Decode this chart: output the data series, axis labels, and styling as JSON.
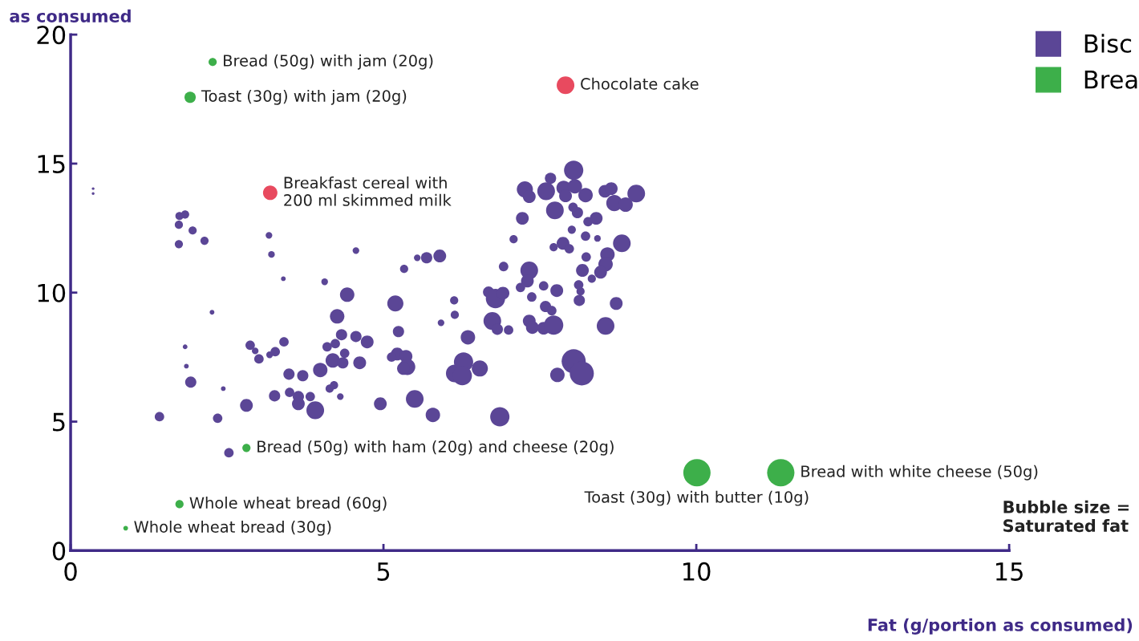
{
  "chart_data": {
    "type": "bubble",
    "ylabel": "as consumed",
    "xlabel": "Fat (g/portion as consumed)",
    "xlim": [
      0,
      15
    ],
    "xticks": [
      0,
      5,
      10,
      15
    ],
    "ylim": [
      0,
      20
    ],
    "yticks": [
      0,
      5,
      10,
      15,
      20
    ],
    "grid": false,
    "legend": "top right",
    "series": [
      {
        "name": "Bisc",
        "color": "#5b4696",
        "x": [
          0.36,
          0.36,
          1.74,
          1.83,
          1.73,
          1.95,
          1.73,
          2.14,
          3.17,
          3.21,
          4.56,
          3.4,
          4.06,
          4.42,
          4.26,
          2.26,
          1.83,
          1.85,
          1.92,
          1.42,
          2.35,
          2.44,
          2.81,
          2.53,
          2.87,
          2.95,
          3.01,
          3.18,
          3.27,
          3.41,
          3.49,
          3.71,
          3.26,
          3.5,
          3.64,
          3.83,
          3.64,
          3.91,
          3.99,
          4.1,
          4.23,
          4.33,
          4.56,
          4.74,
          4.19,
          4.35,
          4.38,
          4.62,
          4.14,
          4.31,
          4.21,
          4.95,
          5.19,
          5.24,
          5.22,
          5.13,
          5.36,
          5.38,
          5.32,
          5.5,
          5.79,
          5.33,
          5.54,
          5.69,
          5.9,
          5.92,
          6.13,
          6.14,
          6.35,
          6.14,
          6.28,
          6.26,
          6.54,
          6.86,
          6.68,
          6.79,
          6.91,
          6.74,
          6.82,
          7.0,
          6.92,
          7.19,
          7.08,
          7.22,
          7.33,
          7.3,
          7.33,
          7.38,
          7.56,
          7.72,
          7.37,
          7.56,
          7.59,
          7.69,
          7.77,
          7.78,
          8.04,
          8.17,
          7.26,
          7.33,
          7.67,
          7.6,
          7.88,
          8.04,
          8.06,
          7.91,
          7.74,
          8.23,
          8.1,
          8.27,
          8.4,
          8.23,
          8.42,
          7.72,
          7.87,
          8.03,
          8.54,
          8.64,
          8.69,
          8.87,
          9.04,
          8.81,
          8.58,
          8.55,
          8.47,
          8.18,
          8.33,
          8.15,
          8.13,
          8.72,
          8.55,
          8.12,
          7.97,
          8.24,
          8.01
        ],
        "values": [
          13.84,
          14.03,
          12.97,
          13.03,
          12.63,
          12.41,
          11.88,
          12.01,
          12.22,
          11.48,
          11.63,
          10.54,
          10.42,
          9.92,
          9.08,
          9.24,
          7.9,
          7.15,
          6.53,
          5.19,
          5.13,
          6.28,
          5.63,
          3.79,
          7.96,
          7.74,
          7.43,
          7.59,
          7.71,
          8.09,
          6.84,
          6.78,
          6.0,
          6.13,
          5.97,
          5.97,
          5.69,
          5.44,
          7.0,
          7.9,
          8.02,
          8.37,
          8.3,
          8.09,
          7.37,
          7.28,
          7.65,
          7.28,
          6.28,
          5.97,
          6.41,
          5.69,
          9.58,
          8.49,
          7.62,
          7.5,
          7.53,
          7.12,
          7.06,
          5.88,
          5.26,
          10.92,
          11.35,
          11.35,
          11.42,
          8.83,
          9.7,
          9.14,
          8.27,
          6.87,
          7.31,
          6.78,
          7.06,
          5.19,
          10.02,
          9.77,
          9.98,
          8.9,
          8.58,
          8.55,
          11.01,
          10.2,
          12.07,
          12.88,
          10.86,
          10.45,
          8.9,
          8.65,
          8.62,
          8.74,
          9.83,
          10.26,
          9.46,
          9.3,
          10.08,
          6.81,
          7.34,
          6.87,
          14.0,
          13.72,
          14.43,
          13.93,
          14.06,
          14.74,
          14.12,
          13.75,
          13.19,
          13.78,
          13.1,
          12.75,
          12.88,
          12.19,
          12.1,
          11.76,
          11.91,
          13.31,
          13.93,
          14.03,
          13.47,
          13.41,
          13.84,
          11.91,
          11.48,
          11.1,
          10.79,
          10.86,
          10.54,
          10.05,
          9.7,
          9.58,
          8.71,
          10.3,
          11.7,
          11.38,
          12.44
        ],
        "sizes": [
          0.01,
          0.01,
          0.09,
          0.09,
          0.09,
          0.09,
          0.09,
          0.09,
          0.06,
          0.06,
          0.06,
          0.03,
          0.06,
          0.28,
          0.28,
          0.03,
          0.03,
          0.03,
          0.17,
          0.12,
          0.12,
          0.03,
          0.22,
          0.12,
          0.12,
          0.06,
          0.12,
          0.06,
          0.12,
          0.12,
          0.17,
          0.17,
          0.17,
          0.12,
          0.17,
          0.12,
          0.22,
          0.42,
          0.28,
          0.12,
          0.12,
          0.17,
          0.17,
          0.22,
          0.28,
          0.17,
          0.12,
          0.22,
          0.09,
          0.06,
          0.09,
          0.22,
          0.35,
          0.17,
          0.22,
          0.12,
          0.22,
          0.35,
          0.22,
          0.42,
          0.28,
          0.09,
          0.06,
          0.17,
          0.22,
          0.06,
          0.09,
          0.09,
          0.28,
          0.42,
          0.5,
          0.5,
          0.35,
          0.5,
          0.17,
          0.5,
          0.22,
          0.42,
          0.17,
          0.12,
          0.12,
          0.12,
          0.09,
          0.22,
          0.42,
          0.22,
          0.22,
          0.22,
          0.22,
          0.5,
          0.12,
          0.12,
          0.17,
          0.12,
          0.22,
          0.28,
          0.78,
          0.78,
          0.35,
          0.22,
          0.17,
          0.42,
          0.28,
          0.5,
          0.28,
          0.22,
          0.42,
          0.28,
          0.17,
          0.12,
          0.22,
          0.12,
          0.06,
          0.09,
          0.22,
          0.12,
          0.22,
          0.22,
          0.35,
          0.28,
          0.42,
          0.42,
          0.28,
          0.28,
          0.22,
          0.22,
          0.09,
          0.09,
          0.17,
          0.22,
          0.42,
          0.12,
          0.12,
          0.12,
          0.09
        ]
      },
      {
        "name": "Brea",
        "color": "#3daf4a",
        "x": [
          2.27,
          1.91,
          2.81,
          1.74,
          0.88,
          10.01,
          11.35
        ],
        "values": [
          18.94,
          17.57,
          3.98,
          1.8,
          0.87,
          3.02,
          3.02
        ],
        "sizes": [
          0.09,
          0.17,
          0.09,
          0.09,
          0.03,
          1,
          1
        ]
      },
      {
        "color": "#e84a5f",
        "x": [
          7.91,
          3.19
        ],
        "values": [
          18.04,
          13.87
        ],
        "sizes": [
          0.42,
          0.28
        ]
      }
    ],
    "annotations": [
      {
        "text": "Bread (50g) with jam (20g)",
        "x": 2.27,
        "y": 18.94
      },
      {
        "text": "Toast (30g) with jam (20g)",
        "x": 1.91,
        "y": 17.57
      },
      {
        "text": "Chocolate cake",
        "x": 7.91,
        "y": 18.04
      },
      {
        "text": "Breakfast cereal with\n200 ml skimmed milk",
        "x": 3.19,
        "y": 13.87
      },
      {
        "text": "Bread (50g) with ham (20g) and cheese (20g)",
        "x": 2.81,
        "y": 3.98
      },
      {
        "text": "Whole wheat bread (60g)",
        "x": 1.74,
        "y": 1.8
      },
      {
        "text": "Whole wheat bread (30g)",
        "x": 0.88,
        "y": 0.87
      },
      {
        "text": "Toast (30g) with butter (10g)",
        "x": 10.01,
        "y": 3.02
      },
      {
        "text": "Bread with white cheese (50g)",
        "x": 11.35,
        "y": 3.02
      },
      "Bubble size =\nSaturated fat"
    ]
  }
}
